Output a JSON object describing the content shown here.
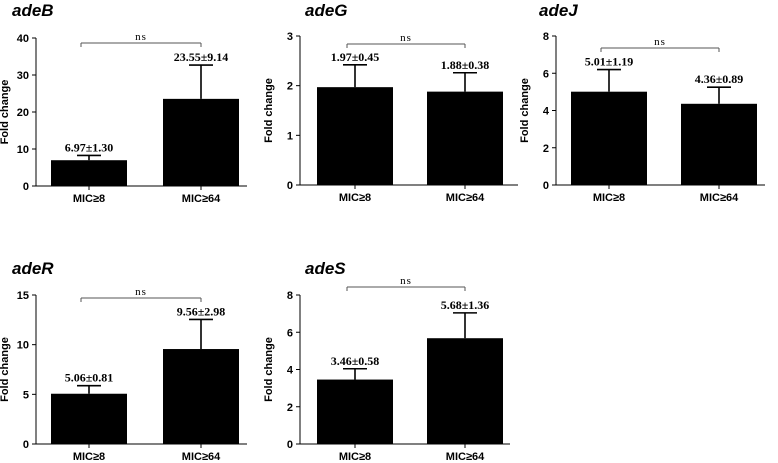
{
  "chart_data": [
    {
      "type": "bar",
      "title": "adeB",
      "ylabel": "Fold change",
      "ylim": [
        0,
        40
      ],
      "yticks": [
        0,
        10,
        20,
        30,
        40
      ],
      "categories": [
        "MIC≥8",
        "MIC≥64"
      ],
      "values": [
        6.97,
        23.55
      ],
      "errors": [
        1.3,
        9.14
      ],
      "labels": [
        "6.97±1.30",
        "23.55±9.14"
      ],
      "significance": "ns"
    },
    {
      "type": "bar",
      "title": "adeG",
      "ylabel": "Fold change",
      "ylim": [
        0,
        3
      ],
      "yticks": [
        0,
        1,
        2,
        3
      ],
      "categories": [
        "MIC≥8",
        "MIC≥64"
      ],
      "values": [
        1.97,
        1.88
      ],
      "errors": [
        0.45,
        0.38
      ],
      "labels": [
        "1.97±0.45",
        "1.88±0.38"
      ],
      "significance": "ns"
    },
    {
      "type": "bar",
      "title": "adeJ",
      "ylabel": "Fold change",
      "ylim": [
        0,
        8
      ],
      "yticks": [
        0,
        2,
        4,
        6,
        8
      ],
      "categories": [
        "MIC≥8",
        "MIC≥64"
      ],
      "values": [
        5.01,
        4.36
      ],
      "errors": [
        1.19,
        0.89
      ],
      "labels": [
        "5.01±1.19",
        "4.36±0.89"
      ],
      "significance": "ns"
    },
    {
      "type": "bar",
      "title": "adeR",
      "ylabel": "Fold change",
      "ylim": [
        0,
        15
      ],
      "yticks": [
        0,
        5,
        10,
        15
      ],
      "categories": [
        "MIC≥8",
        "MIC≥64"
      ],
      "values": [
        5.06,
        9.56
      ],
      "errors": [
        0.81,
        2.98
      ],
      "labels": [
        "5.06±0.81",
        "9.56±2.98"
      ],
      "significance": "ns"
    },
    {
      "type": "bar",
      "title": "adeS",
      "ylabel": "Fold change",
      "ylim": [
        0,
        8
      ],
      "yticks": [
        0,
        2,
        4,
        6,
        8
      ],
      "categories": [
        "MIC≥8",
        "MIC≥64"
      ],
      "values": [
        3.46,
        5.68
      ],
      "errors": [
        0.58,
        1.36
      ],
      "labels": [
        "3.46±0.58",
        "5.68±1.36"
      ],
      "significance": "ns"
    }
  ]
}
